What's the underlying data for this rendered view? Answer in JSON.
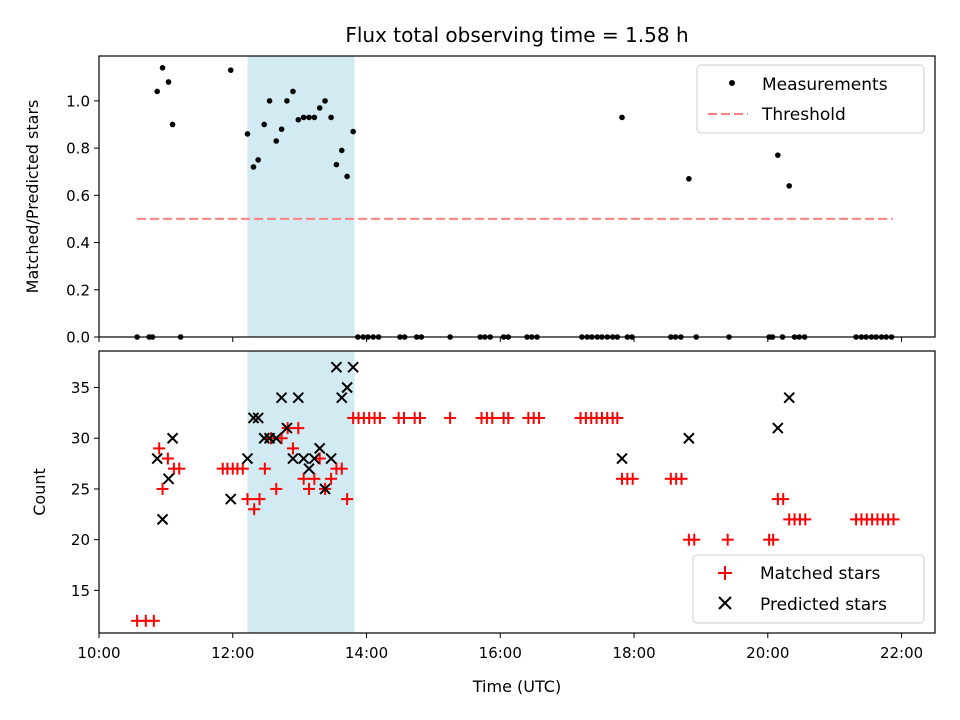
{
  "title": "Flux total observing time = 1.58 h",
  "chart_data": [
    {
      "type": "scatter",
      "ylabel": "Matched/Predicted stars",
      "xlim": [
        10.0,
        22.5
      ],
      "ylim": [
        0.0,
        1.19
      ],
      "yticks": [
        0.0,
        0.2,
        0.4,
        0.6,
        0.8,
        1.0
      ],
      "yticklabels": [
        "0.0",
        "0.2",
        "0.4",
        "0.6",
        "0.8",
        "1.0"
      ],
      "shaded_span": {
        "x0": 12.22,
        "x1": 13.82,
        "color": "#add8e6"
      },
      "legend_position": "top-right",
      "series": [
        {
          "name": "Measurements",
          "marker": "dot",
          "color": "#000000",
          "points": [
            [
              10.87,
              1.04
            ],
            [
              10.95,
              1.14
            ],
            [
              11.04,
              1.08
            ],
            [
              11.1,
              0.9
            ],
            [
              11.97,
              1.13
            ],
            [
              12.22,
              0.86
            ],
            [
              12.31,
              0.72
            ],
            [
              12.38,
              0.75
            ],
            [
              12.47,
              0.9
            ],
            [
              12.55,
              1.0
            ],
            [
              12.65,
              0.83
            ],
            [
              12.73,
              0.88
            ],
            [
              12.81,
              1.0
            ],
            [
              12.9,
              1.04
            ],
            [
              12.98,
              0.92
            ],
            [
              13.06,
              0.93
            ],
            [
              13.14,
              0.93
            ],
            [
              13.22,
              0.93
            ],
            [
              13.3,
              0.97
            ],
            [
              13.38,
              1.0
            ],
            [
              13.47,
              0.93
            ],
            [
              13.55,
              0.73
            ],
            [
              13.63,
              0.79
            ],
            [
              13.71,
              0.68
            ],
            [
              13.8,
              0.87
            ],
            [
              17.82,
              0.93
            ],
            [
              18.82,
              0.67
            ],
            [
              20.15,
              0.77
            ],
            [
              20.32,
              0.64
            ],
            [
              10.57,
              0
            ],
            [
              10.75,
              0
            ],
            [
              10.8,
              0
            ],
            [
              11.22,
              0
            ],
            [
              13.87,
              0
            ],
            [
              13.95,
              0
            ],
            [
              14.02,
              0
            ],
            [
              14.1,
              0
            ],
            [
              14.18,
              0
            ],
            [
              14.5,
              0
            ],
            [
              14.57,
              0
            ],
            [
              14.75,
              0
            ],
            [
              14.82,
              0
            ],
            [
              15.25,
              0
            ],
            [
              15.7,
              0
            ],
            [
              15.77,
              0
            ],
            [
              15.85,
              0
            ],
            [
              16.05,
              0
            ],
            [
              16.12,
              0
            ],
            [
              16.4,
              0
            ],
            [
              16.47,
              0
            ],
            [
              16.55,
              0
            ],
            [
              17.22,
              0
            ],
            [
              17.3,
              0
            ],
            [
              17.37,
              0
            ],
            [
              17.45,
              0
            ],
            [
              17.52,
              0
            ],
            [
              17.6,
              0
            ],
            [
              17.68,
              0
            ],
            [
              17.75,
              0
            ],
            [
              17.9,
              0
            ],
            [
              17.97,
              0
            ],
            [
              18.55,
              0
            ],
            [
              18.62,
              0
            ],
            [
              18.7,
              0
            ],
            [
              18.93,
              0
            ],
            [
              19.42,
              0
            ],
            [
              20.02,
              0
            ],
            [
              20.07,
              0
            ],
            [
              20.22,
              0
            ],
            [
              20.4,
              0
            ],
            [
              20.47,
              0
            ],
            [
              20.55,
              0
            ],
            [
              21.32,
              0
            ],
            [
              21.4,
              0
            ],
            [
              21.47,
              0
            ],
            [
              21.55,
              0
            ],
            [
              21.62,
              0
            ],
            [
              21.7,
              0
            ],
            [
              21.77,
              0
            ],
            [
              21.85,
              0
            ]
          ]
        },
        {
          "name": "Threshold",
          "line": "dashed",
          "color": "#ff8080",
          "points": [
            [
              10.57,
              0.5
            ],
            [
              21.87,
              0.5
            ]
          ]
        }
      ]
    },
    {
      "type": "scatter",
      "xlabel": "Time (UTC)",
      "ylabel": "Count",
      "xlim": [
        10.0,
        22.5
      ],
      "ylim": [
        10.8,
        38.6
      ],
      "xticks": [
        10,
        12,
        14,
        16,
        18,
        20,
        22
      ],
      "xticklabels": [
        "10:00",
        "12:00",
        "14:00",
        "16:00",
        "18:00",
        "20:00",
        "22:00"
      ],
      "yticks": [
        15,
        20,
        25,
        30,
        35
      ],
      "yticklabels": [
        "15",
        "20",
        "25",
        "30",
        "35"
      ],
      "shaded_span": {
        "x0": 12.22,
        "x1": 13.82,
        "color": "#add8e6"
      },
      "legend_position": "bottom-right",
      "series": [
        {
          "name": "Matched stars",
          "marker": "plus",
          "color": "#ff0000",
          "points": [
            [
              10.57,
              12
            ],
            [
              10.7,
              12
            ],
            [
              10.82,
              12
            ],
            [
              10.9,
              29
            ],
            [
              10.95,
              25
            ],
            [
              11.03,
              28
            ],
            [
              11.12,
              27
            ],
            [
              11.2,
              27
            ],
            [
              11.85,
              27
            ],
            [
              11.92,
              27
            ],
            [
              12.0,
              27
            ],
            [
              12.07,
              27
            ],
            [
              12.15,
              27
            ],
            [
              12.22,
              24
            ],
            [
              12.32,
              23
            ],
            [
              12.4,
              24
            ],
            [
              12.48,
              27
            ],
            [
              12.57,
              30
            ],
            [
              12.65,
              25
            ],
            [
              12.73,
              30
            ],
            [
              12.82,
              31
            ],
            [
              12.9,
              29
            ],
            [
              12.98,
              31
            ],
            [
              13.06,
              26
            ],
            [
              13.14,
              25
            ],
            [
              13.22,
              26
            ],
            [
              13.3,
              28
            ],
            [
              13.38,
              25
            ],
            [
              13.47,
              26
            ],
            [
              13.55,
              27
            ],
            [
              13.63,
              27
            ],
            [
              13.71,
              24
            ],
            [
              13.8,
              32
            ],
            [
              13.88,
              32
            ],
            [
              13.96,
              32
            ],
            [
              14.04,
              32
            ],
            [
              14.12,
              32
            ],
            [
              14.2,
              32
            ],
            [
              14.48,
              32
            ],
            [
              14.56,
              32
            ],
            [
              14.72,
              32
            ],
            [
              14.8,
              32
            ],
            [
              15.25,
              32
            ],
            [
              15.72,
              32
            ],
            [
              15.8,
              32
            ],
            [
              15.88,
              32
            ],
            [
              16.05,
              32
            ],
            [
              16.12,
              32
            ],
            [
              16.42,
              32
            ],
            [
              16.5,
              32
            ],
            [
              16.58,
              32
            ],
            [
              17.2,
              32
            ],
            [
              17.28,
              32
            ],
            [
              17.36,
              32
            ],
            [
              17.44,
              32
            ],
            [
              17.52,
              32
            ],
            [
              17.6,
              32
            ],
            [
              17.68,
              32
            ],
            [
              17.75,
              32
            ],
            [
              17.82,
              26
            ],
            [
              17.9,
              26
            ],
            [
              17.98,
              26
            ],
            [
              18.55,
              26
            ],
            [
              18.63,
              26
            ],
            [
              18.71,
              26
            ],
            [
              18.82,
              20
            ],
            [
              18.9,
              20
            ],
            [
              19.4,
              20
            ],
            [
              20.02,
              20
            ],
            [
              20.08,
              20
            ],
            [
              20.15,
              24
            ],
            [
              20.23,
              24
            ],
            [
              20.32,
              22
            ],
            [
              20.4,
              22
            ],
            [
              20.48,
              22
            ],
            [
              20.56,
              22
            ],
            [
              21.32,
              22
            ],
            [
              21.4,
              22
            ],
            [
              21.48,
              22
            ],
            [
              21.56,
              22
            ],
            [
              21.64,
              22
            ],
            [
              21.72,
              22
            ],
            [
              21.8,
              22
            ],
            [
              21.88,
              22
            ]
          ]
        },
        {
          "name": "Predicted stars",
          "marker": "x",
          "color": "#000000",
          "points": [
            [
              10.87,
              28
            ],
            [
              10.95,
              22
            ],
            [
              11.04,
              26
            ],
            [
              11.1,
              30
            ],
            [
              11.97,
              24
            ],
            [
              12.22,
              28
            ],
            [
              12.31,
              32
            ],
            [
              12.38,
              32
            ],
            [
              12.47,
              30
            ],
            [
              12.55,
              30
            ],
            [
              12.65,
              30
            ],
            [
              12.73,
              34
            ],
            [
              12.81,
              31
            ],
            [
              12.9,
              28
            ],
            [
              12.98,
              34
            ],
            [
              13.06,
              28
            ],
            [
              13.14,
              27
            ],
            [
              13.22,
              28
            ],
            [
              13.3,
              29
            ],
            [
              13.38,
              25
            ],
            [
              13.47,
              28
            ],
            [
              13.55,
              37
            ],
            [
              13.63,
              34
            ],
            [
              13.71,
              35
            ],
            [
              13.8,
              37
            ],
            [
              17.82,
              28
            ],
            [
              18.82,
              30
            ],
            [
              20.15,
              31
            ],
            [
              20.32,
              34
            ]
          ]
        }
      ]
    }
  ]
}
